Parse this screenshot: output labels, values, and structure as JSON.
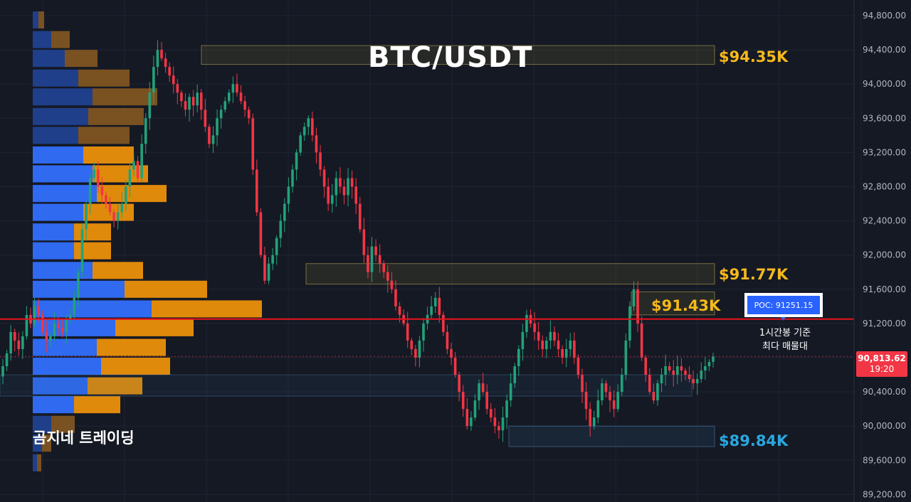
{
  "chart_data": {
    "type": "candlestick",
    "title": "BTC/USDT",
    "watermark": "곰지네 트레이딩",
    "y_ticks": [
      "94,800.00",
      "94,400.00",
      "94,000.00",
      "93,600.00",
      "93,200.00",
      "92,800.00",
      "92,400.00",
      "92,000.00",
      "91,600.00",
      "91,200.00",
      "90,800.00",
      "90,400.00",
      "90,000.00",
      "89,600.00",
      "89,200.00"
    ],
    "ylim": [
      89150,
      94850
    ],
    "current_price": {
      "value": "90,813.62",
      "countdown": "19:20"
    },
    "poc": {
      "label": "POC: 91251.15",
      "value": 91251.15,
      "note": [
        "1시간봉 기준",
        "최다 매물대"
      ]
    },
    "zones": [
      {
        "label": "$94.35K",
        "low": 94230,
        "high": 94450,
        "kind": "resistance",
        "color": "#f5b91c"
      },
      {
        "label": "$91.77K",
        "low": 91660,
        "high": 91900,
        "kind": "resistance",
        "color": "#f5b91c"
      },
      {
        "label": "$91.43K",
        "low": 91300,
        "high": 91570,
        "kind": "resistance",
        "color": "#f5b91c"
      },
      {
        "label": "$89.84K",
        "low": 89760,
        "high": 90000,
        "kind": "support",
        "color": "#29a8e0"
      }
    ],
    "volume_profile": [
      {
        "price": 94750,
        "buy": 8,
        "sell": 8
      },
      {
        "price": 94520,
        "buy": 26,
        "sell": 26
      },
      {
        "price": 94300,
        "buy": 45,
        "sell": 46
      },
      {
        "price": 94070,
        "buy": 64,
        "sell": 72
      },
      {
        "price": 93850,
        "buy": 84,
        "sell": 91
      },
      {
        "price": 93620,
        "buy": 78,
        "sell": 78
      },
      {
        "price": 93400,
        "buy": 64,
        "sell": 72
      },
      {
        "price": 93170,
        "buy": 71,
        "sell": 71
      },
      {
        "price": 92950,
        "buy": 84,
        "sell": 78
      },
      {
        "price": 92720,
        "buy": 90,
        "sell": 98
      },
      {
        "price": 92500,
        "buy": 71,
        "sell": 71
      },
      {
        "price": 92270,
        "buy": 58,
        "sell": 52
      },
      {
        "price": 92050,
        "buy": 58,
        "sell": 52
      },
      {
        "price": 91820,
        "buy": 84,
        "sell": 71
      },
      {
        "price": 91600,
        "buy": 129,
        "sell": 116
      },
      {
        "price": 91370,
        "buy": 167,
        "sell": 155
      },
      {
        "price": 91150,
        "buy": 116,
        "sell": 110
      },
      {
        "price": 90920,
        "buy": 90,
        "sell": 97
      },
      {
        "price": 90700,
        "buy": 96,
        "sell": 97
      },
      {
        "price": 90470,
        "buy": 77,
        "sell": 77
      },
      {
        "price": 90250,
        "buy": 58,
        "sell": 65
      },
      {
        "price": 90020,
        "buy": 26,
        "sell": 33
      },
      {
        "price": 89800,
        "buy": 13,
        "sell": 13
      },
      {
        "price": 89570,
        "buy": 6,
        "sell": 6
      }
    ],
    "candles_close": [
      90700,
      90850,
      91100,
      91000,
      90900,
      91050,
      91300,
      91200,
      91400,
      91300,
      91100,
      91000,
      91050,
      91200,
      91150,
      91100,
      91250,
      91300,
      91500,
      91800,
      92300,
      92600,
      92900,
      93000,
      92800,
      92700,
      92600,
      92500,
      92400,
      92500,
      92600,
      92800,
      93000,
      93100,
      92900,
      93300,
      93600,
      93900,
      94200,
      94400,
      94300,
      94200,
      94100,
      94000,
      93900,
      93800,
      93700,
      93850,
      93750,
      93900,
      93700,
      93500,
      93300,
      93400,
      93600,
      93700,
      93800,
      93900,
      94000,
      93900,
      93800,
      93700,
      93600,
      93000,
      92500,
      92000,
      91700,
      91900,
      92000,
      92200,
      92400,
      92600,
      92800,
      93000,
      93200,
      93400,
      93500,
      93600,
      93400,
      93200,
      93000,
      92800,
      92600,
      92700,
      92900,
      92800,
      92700,
      92900,
      92800,
      92600,
      92300,
      92000,
      91800,
      92100,
      92000,
      91900,
      91800,
      91700,
      91600,
      91400,
      91300,
      91200,
      91000,
      90900,
      90800,
      91000,
      91200,
      91300,
      91400,
      91500,
      91300,
      91100,
      90900,
      90800,
      90600,
      90400,
      90200,
      90000,
      90100,
      90300,
      90500,
      90400,
      90200,
      90100,
      90000,
      89950,
      90100,
      90300,
      90500,
      90700,
      90900,
      91100,
      91300,
      91200,
      91100,
      91000,
      90900,
      91000,
      91100,
      91000,
      90900,
      90800,
      90900,
      91000,
      90800,
      90600,
      90400,
      90200,
      90000,
      90100,
      90300,
      90500,
      90400,
      90300,
      90200,
      90400,
      90600,
      91000,
      91400,
      91600,
      91200,
      90800,
      90600,
      90400,
      90300,
      90500,
      90600,
      90700,
      90650,
      90600,
      90700,
      90650,
      90600,
      90550,
      90500,
      90550,
      90650,
      90700,
      90750,
      90813.62
    ]
  }
}
